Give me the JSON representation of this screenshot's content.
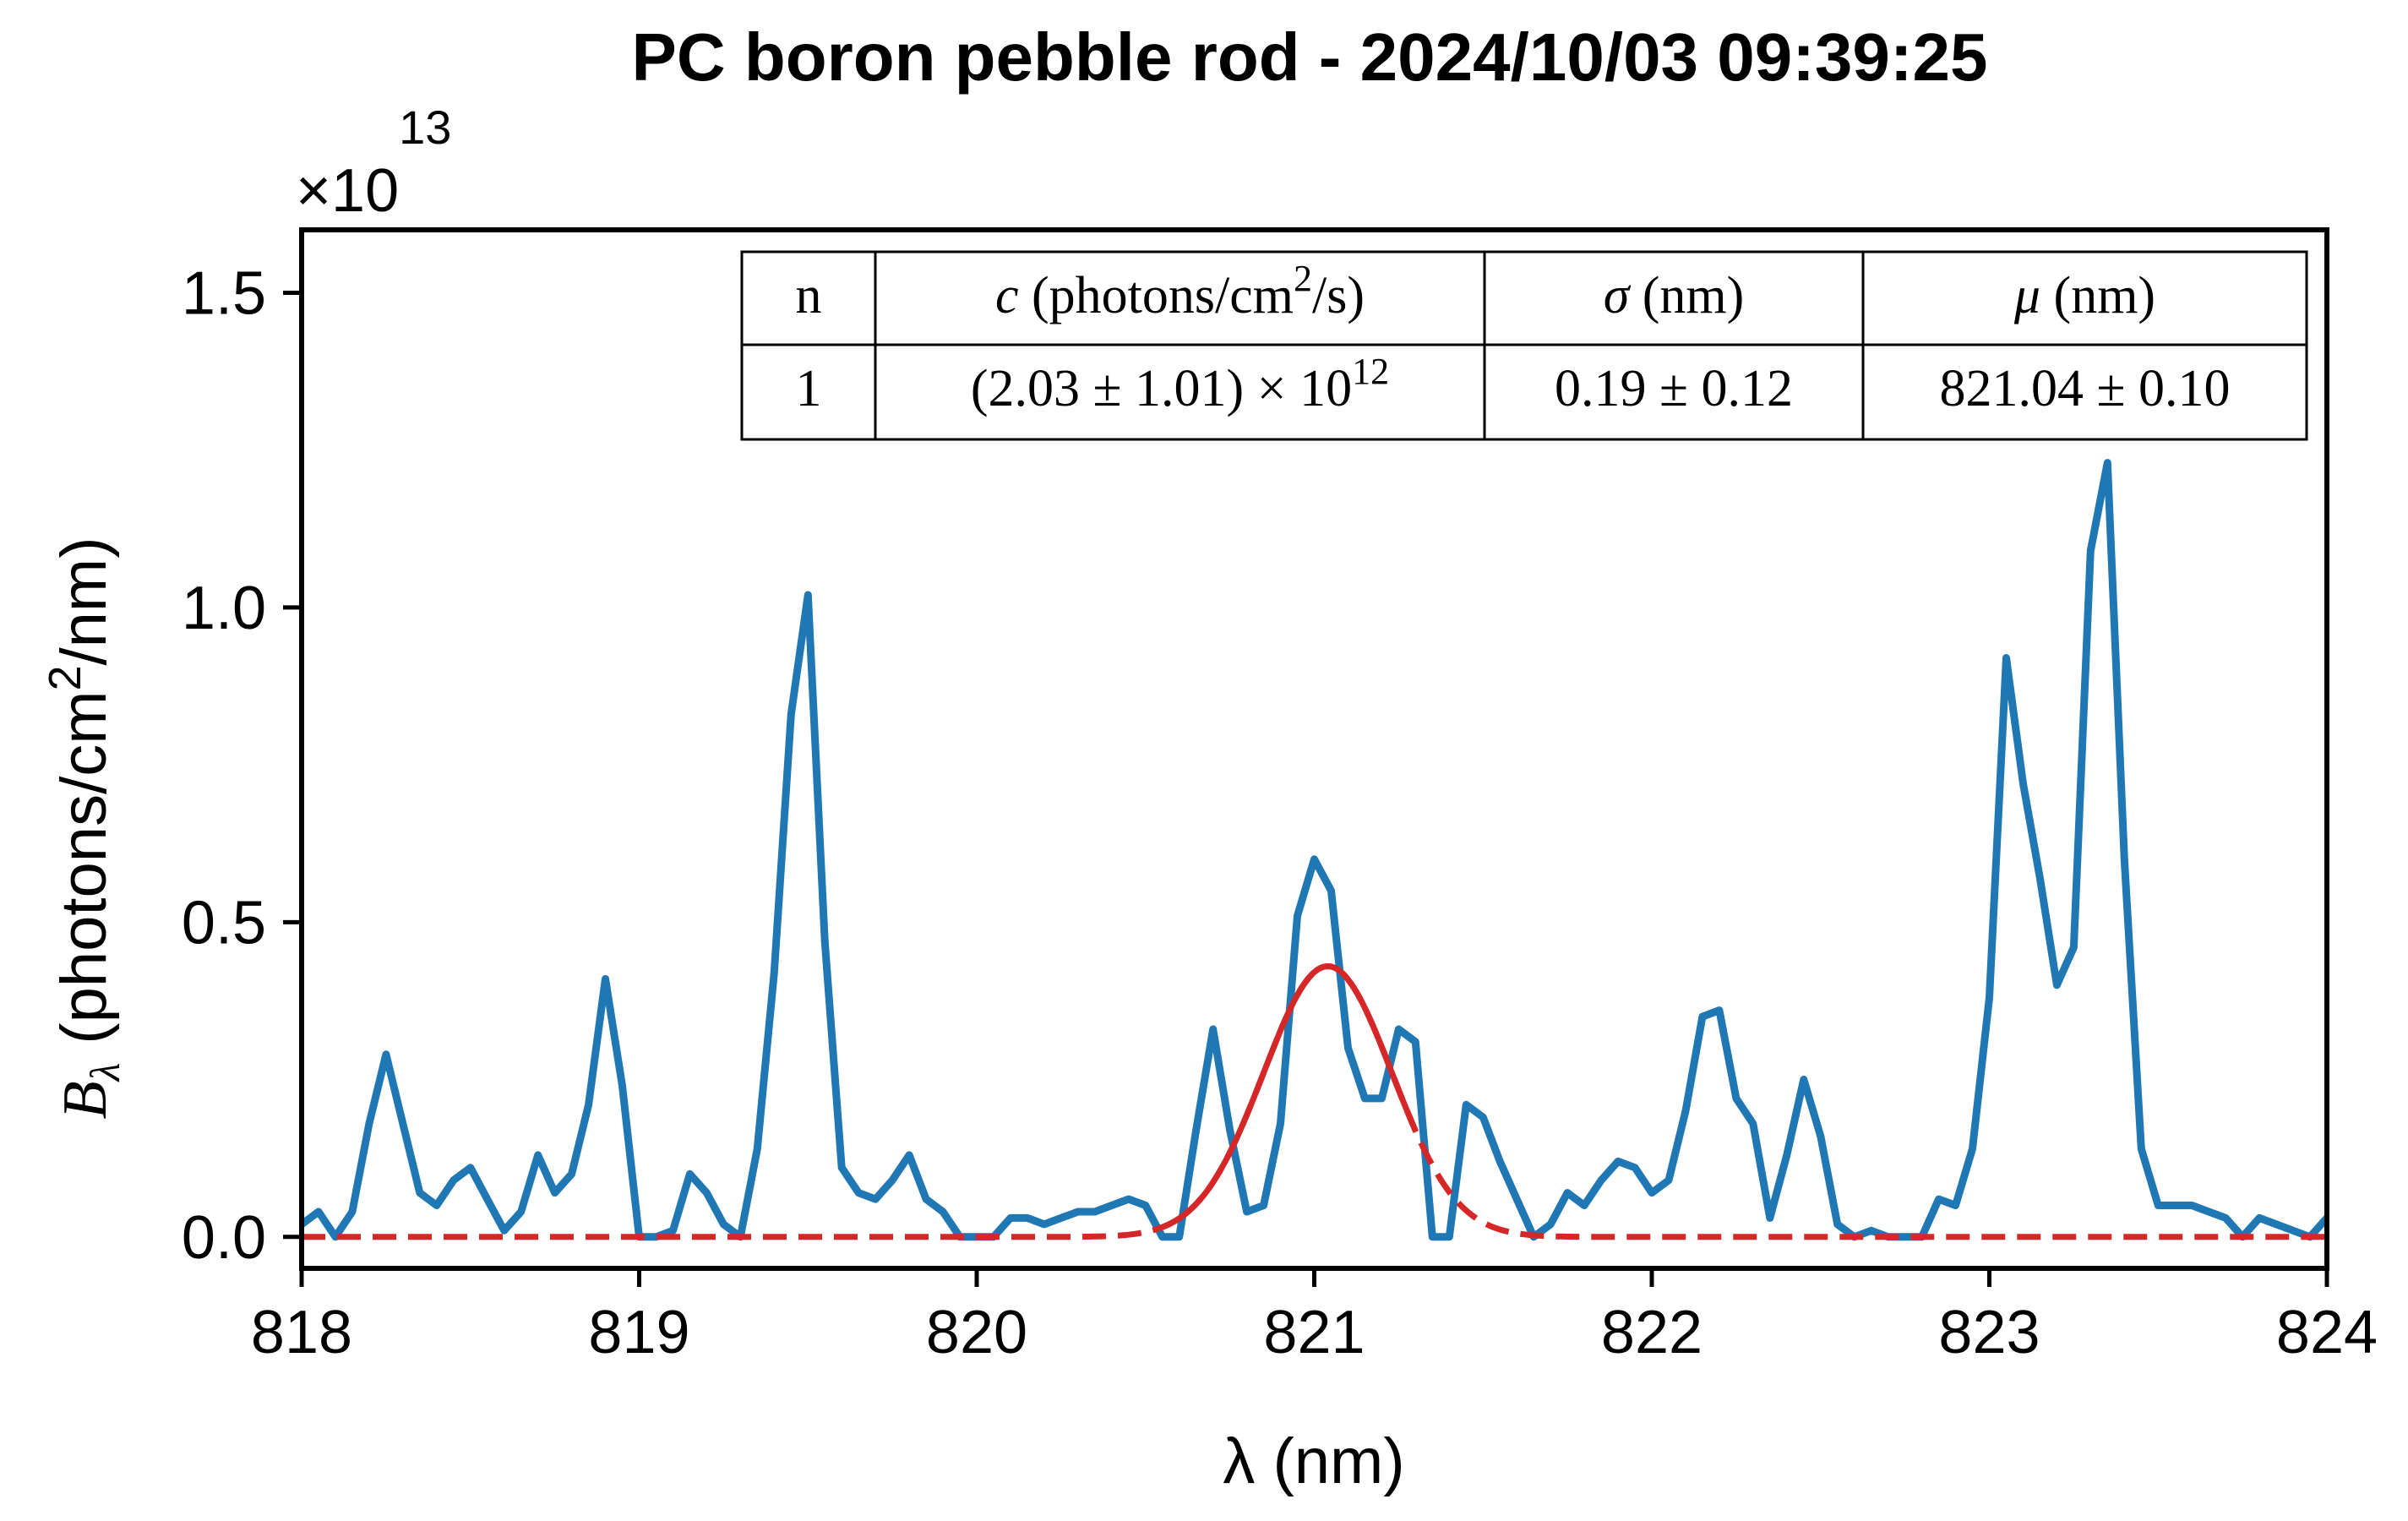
{
  "chart_data": {
    "type": "line",
    "title": "PC boron pebble rod - 2024/10/03 09:39:25",
    "xlabel": "λ (nm)",
    "ylabel_symbol": "B",
    "ylabel_subscript": "λ",
    "ylabel_unit_prefix": "(photons/cm",
    "ylabel_unit_sup": "2",
    "ylabel_unit_suffix": "/nm)",
    "y_offset_base": "×10",
    "y_offset_exp": "13",
    "xlim": [
      818,
      824
    ],
    "ylim": [
      -0.05,
      1.6
    ],
    "xticks": [
      818,
      819,
      820,
      821,
      822,
      823,
      824
    ],
    "xtick_labels": [
      "818",
      "819",
      "820",
      "821",
      "822",
      "823",
      "824"
    ],
    "yticks": [
      0.0,
      0.5,
      1.0,
      1.5
    ],
    "ytick_labels": [
      "0.0",
      "0.5",
      "1.0",
      "1.5"
    ],
    "grid": false,
    "series": [
      {
        "color": "#1f77b4",
        "style": "solid",
        "x": [
          818.0,
          818.05,
          818.1,
          818.15,
          818.2,
          818.25,
          818.3,
          818.35,
          818.4,
          818.45,
          818.5,
          818.55,
          818.6,
          818.65,
          818.7,
          818.75,
          818.8,
          818.85,
          818.9,
          818.95,
          819.0,
          819.05,
          819.1,
          819.15,
          819.2,
          819.25,
          819.3,
          819.35,
          819.4,
          819.45,
          819.5,
          819.55,
          819.6,
          819.65,
          819.7,
          819.75,
          819.8,
          819.85,
          819.9,
          819.95,
          820.0,
          820.05,
          820.1,
          820.15,
          820.2,
          820.25,
          820.3,
          820.35,
          820.4,
          820.45,
          820.5,
          820.55,
          820.6,
          820.65,
          820.7,
          820.75,
          820.8,
          820.85,
          820.9,
          820.95,
          821.0,
          821.05,
          821.1,
          821.15,
          821.2,
          821.25,
          821.3,
          821.35,
          821.4,
          821.45,
          821.5,
          821.55,
          821.6,
          821.65,
          821.7,
          821.75,
          821.8,
          821.85,
          821.9,
          821.95,
          822.0,
          822.05,
          822.1,
          822.15,
          822.2,
          822.25,
          822.3,
          822.35,
          822.4,
          822.45,
          822.5,
          822.55,
          822.6,
          822.65,
          822.7,
          822.75,
          822.8,
          822.85,
          822.9,
          822.95,
          823.0,
          823.05,
          823.1,
          823.15,
          823.2,
          823.25,
          823.3,
          823.35,
          823.4,
          823.45,
          823.5,
          823.55,
          823.6,
          823.65,
          823.7,
          823.75,
          823.8,
          823.85,
          823.9,
          823.95,
          824.0
        ],
        "y": [
          0.02,
          0.04,
          0.0,
          0.04,
          0.18,
          0.29,
          0.18,
          0.07,
          0.05,
          0.09,
          0.11,
          0.06,
          0.01,
          0.04,
          0.13,
          0.07,
          0.1,
          0.21,
          0.41,
          0.24,
          0.0,
          0.0,
          0.01,
          0.1,
          0.07,
          0.02,
          0.0,
          0.14,
          0.42,
          0.83,
          1.02,
          0.47,
          0.11,
          0.07,
          0.06,
          0.09,
          0.13,
          0.06,
          0.04,
          0.0,
          0.0,
          0.0,
          0.03,
          0.03,
          0.02,
          0.03,
          0.04,
          0.04,
          0.05,
          0.06,
          0.05,
          0.0,
          0.0,
          0.17,
          0.33,
          0.17,
          0.04,
          0.05,
          0.18,
          0.51,
          0.6,
          0.55,
          0.3,
          0.22,
          0.22,
          0.33,
          0.31,
          0.0,
          0.0,
          0.21,
          0.19,
          0.12,
          0.06,
          0.0,
          0.02,
          0.07,
          0.05,
          0.09,
          0.12,
          0.11,
          0.07,
          0.09,
          0.2,
          0.35,
          0.36,
          0.22,
          0.18,
          0.03,
          0.13,
          0.25,
          0.16,
          0.02,
          0.0,
          0.01,
          0.0,
          0.0,
          0.0,
          0.06,
          0.05,
          0.14,
          0.38,
          0.92,
          0.72,
          0.57,
          0.4,
          0.46,
          1.09,
          1.23,
          0.6,
          0.14,
          0.05,
          0.05,
          0.05,
          0.04,
          0.03,
          0.0,
          0.03,
          0.02,
          0.01,
          0.0,
          0.03
        ]
      },
      {
        "color": "#d62728",
        "style": "gaussian-fit",
        "amplitude": 0.43,
        "mu": 821.04,
        "sigma": 0.19,
        "solid_range": [
          820.55,
          821.3
        ]
      }
    ]
  },
  "fit_table": {
    "headers": [
      {
        "text": "n"
      },
      {
        "italic": "c",
        "text": " (photons/cm",
        "sup": "2",
        "after": "/s)"
      },
      {
        "italic": "σ",
        "text": " (nm)"
      },
      {
        "italic": "μ",
        "text": " (nm)"
      }
    ],
    "rows": [
      [
        {
          "text": "1"
        },
        {
          "text": "(2.03 ± 1.01) × 10",
          "sup": "12"
        },
        {
          "text": "0.19 ± 0.12"
        },
        {
          "text": "821.04 ± 0.10"
        }
      ]
    ]
  }
}
